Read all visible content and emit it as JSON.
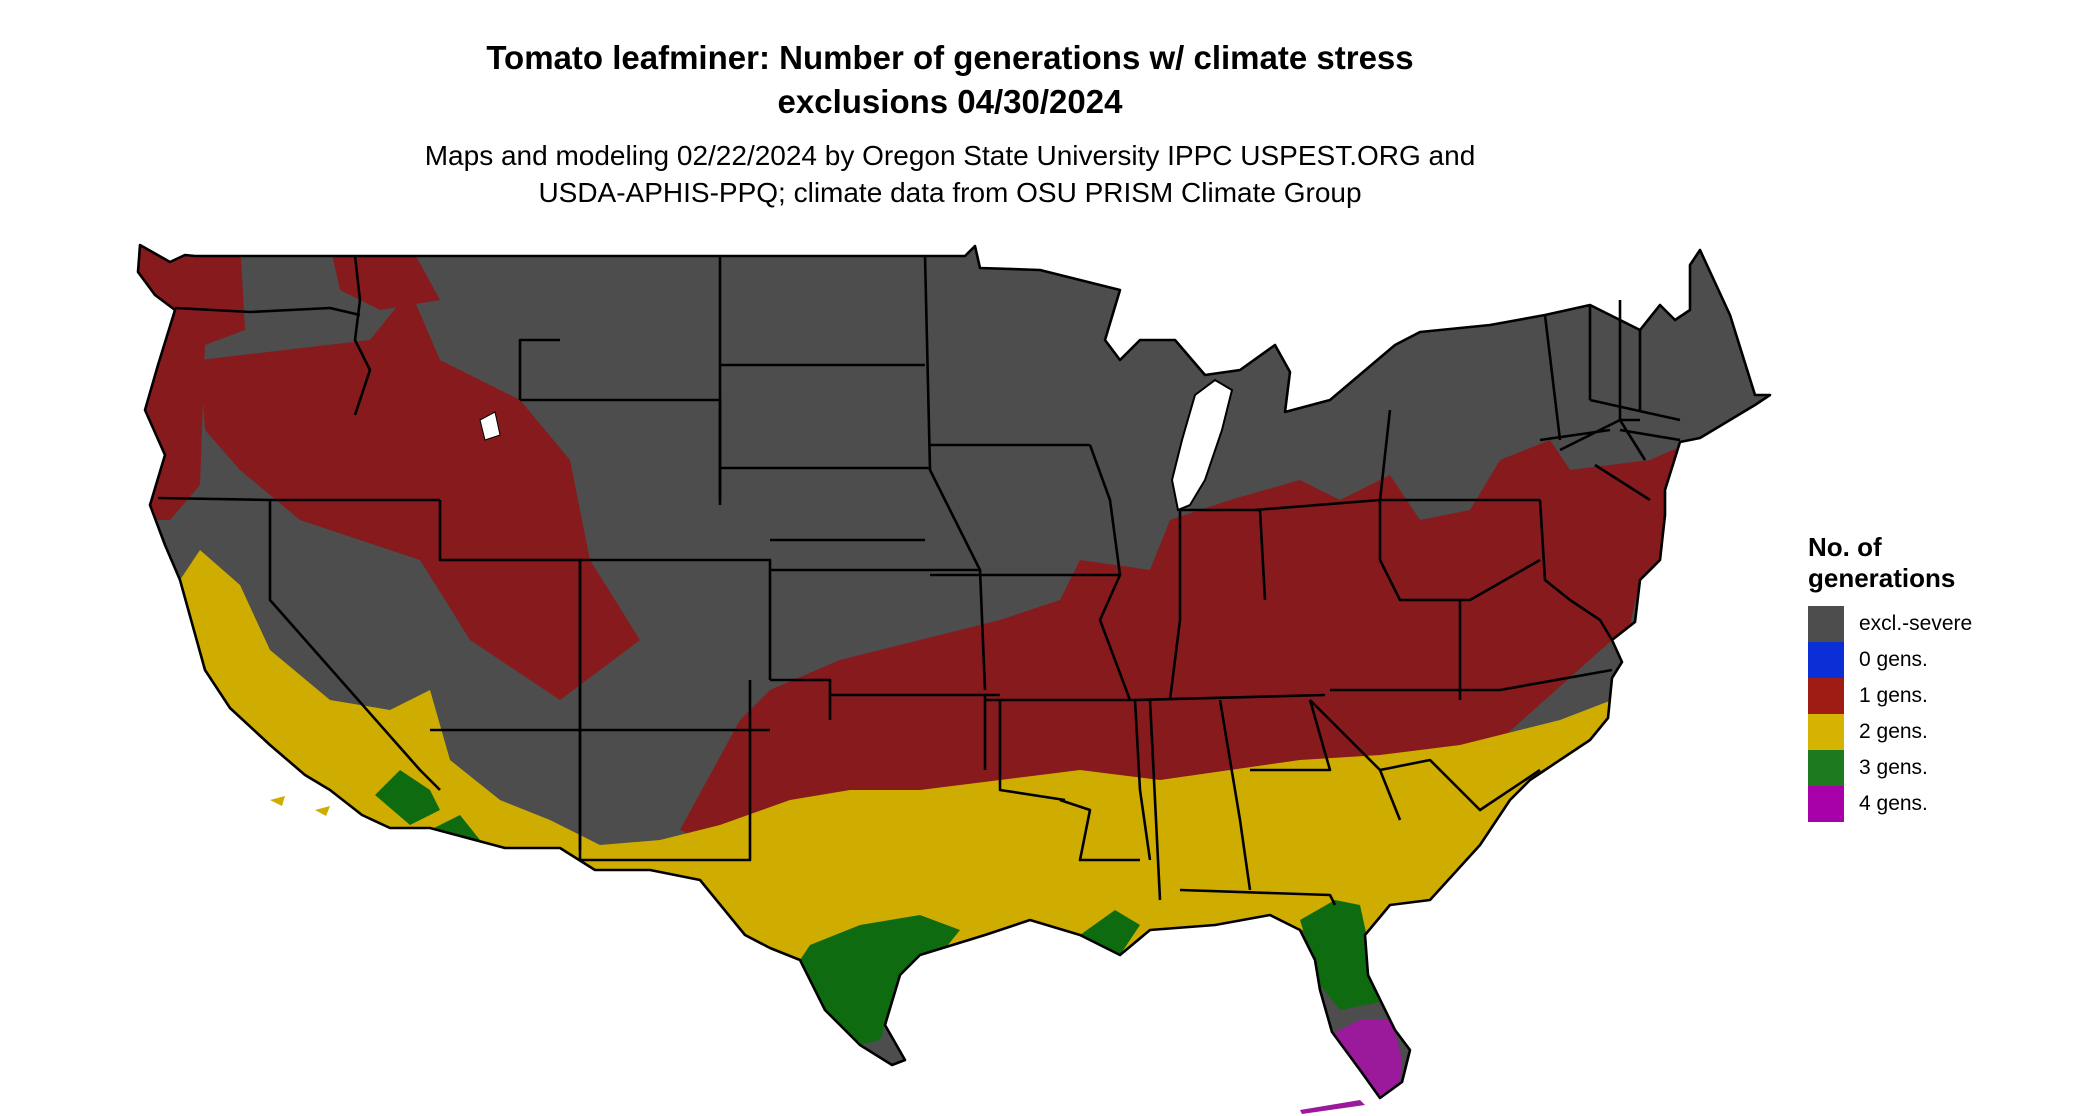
{
  "title": {
    "line1": "Tomato leafminer: Number of generations w/ climate stress",
    "line2": "exclusions 04/30/2024"
  },
  "subtitle": {
    "line1": "Maps and modeling 02/22/2024 by Oregon State University IPPC USPEST.ORG and",
    "line2": "USDA-APHIS-PPQ; climate data from OSU PRISM Climate Group"
  },
  "legend": {
    "title_line1": "No. of",
    "title_line2": "generations",
    "items": [
      {
        "label": "excl.-severe",
        "color": "#4d4d4d"
      },
      {
        "label": "0 gens.",
        "color": "#0a2fd6"
      },
      {
        "label": "1 gens.",
        "color": "#9e1c14"
      },
      {
        "label": "2 gens.",
        "color": "#d4b400"
      },
      {
        "label": "3 gens.",
        "color": "#1e7a1e"
      },
      {
        "label": "4 gens.",
        "color": "#a800a8"
      }
    ]
  },
  "map_colors": {
    "excluded": "#4d4d4d",
    "one_gen": "#871a1c",
    "two_gen": "#cfad00",
    "three_gen": "#0f6b0f",
    "four_gen": "#9b199b",
    "borders": "#000000"
  }
}
